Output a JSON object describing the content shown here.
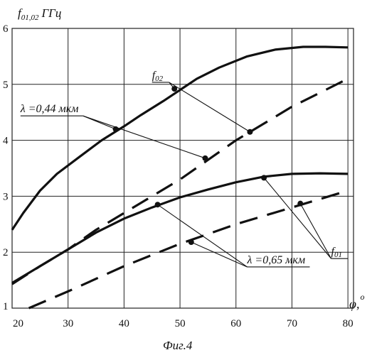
{
  "figure_caption": "Фиг.4",
  "chart_data": {
    "type": "line",
    "title": "",
    "ylabel": "f01,02 ГГц",
    "ylabel_parts": {
      "f": "f",
      "sub": "01,02",
      "unit": "ГГц"
    },
    "xlabel": "φ,°",
    "xlabel_parts": {
      "sym": "φ,",
      "unit": "o"
    },
    "xlim": [
      20,
      81
    ],
    "ylim": [
      1,
      6
    ],
    "x_ticks": [
      20,
      30,
      40,
      50,
      60,
      70,
      80
    ],
    "y_ticks": [
      1,
      2,
      3,
      4,
      5,
      6
    ],
    "grid": true,
    "series": [
      {
        "group": "λ =0,44 мкм",
        "mode": "f02",
        "style": "solid",
        "x": [
          20,
          22,
          25,
          28,
          32,
          36,
          40,
          43,
          47,
          50,
          53,
          57,
          62,
          67,
          72,
          76,
          80
        ],
        "y": [
          2.4,
          2.7,
          3.1,
          3.4,
          3.7,
          4.0,
          4.25,
          4.45,
          4.7,
          4.9,
          5.1,
          5.3,
          5.5,
          5.62,
          5.67,
          5.67,
          5.66
        ]
      },
      {
        "group": "λ =0,44 мкм",
        "mode": "f01",
        "style": "dashed",
        "x": [
          20,
          25,
          30,
          35,
          40,
          45,
          50,
          55,
          60,
          65,
          70,
          75,
          80
        ],
        "y": [
          1.43,
          1.75,
          2.05,
          2.4,
          2.7,
          3.0,
          3.3,
          3.65,
          4.0,
          4.3,
          4.6,
          4.85,
          5.1
        ]
      },
      {
        "group": "λ =0,65 мкм",
        "mode": "f02",
        "style": "solid",
        "x": [
          20,
          25,
          30,
          35,
          40,
          45,
          50,
          55,
          60,
          65,
          70,
          75,
          80
        ],
        "y": [
          1.45,
          1.75,
          2.05,
          2.35,
          2.6,
          2.8,
          2.98,
          3.12,
          3.25,
          3.35,
          3.4,
          3.41,
          3.4
        ]
      },
      {
        "group": "λ =0,65 мкм",
        "mode": "f01",
        "style": "dashed",
        "x": [
          23,
          30,
          40,
          50,
          60,
          70,
          80
        ],
        "y": [
          1.0,
          1.3,
          1.75,
          2.15,
          2.5,
          2.8,
          3.1
        ]
      }
    ],
    "annotations": [
      {
        "text": "λ =0,44 мкм",
        "text_xy": [
          21.5,
          4.5
        ],
        "points": [
          [
            38.5,
            4.2
          ],
          [
            54.5,
            3.68
          ]
        ]
      },
      {
        "text": "λ =0,65 мкм",
        "text_xy": [
          62,
          1.8
        ],
        "points": [
          [
            46,
            2.85
          ],
          [
            52,
            2.18
          ]
        ]
      },
      {
        "text": "f02",
        "sub": "02",
        "text_xy": [
          45,
          5.1
        ],
        "points": [
          [
            49,
            4.92
          ],
          [
            62.5,
            4.15
          ]
        ]
      },
      {
        "text": "f01",
        "sub": "01",
        "text_xy": [
          77,
          1.95
        ],
        "points": [
          [
            65,
            3.33
          ],
          [
            71.5,
            2.87
          ]
        ]
      }
    ]
  }
}
